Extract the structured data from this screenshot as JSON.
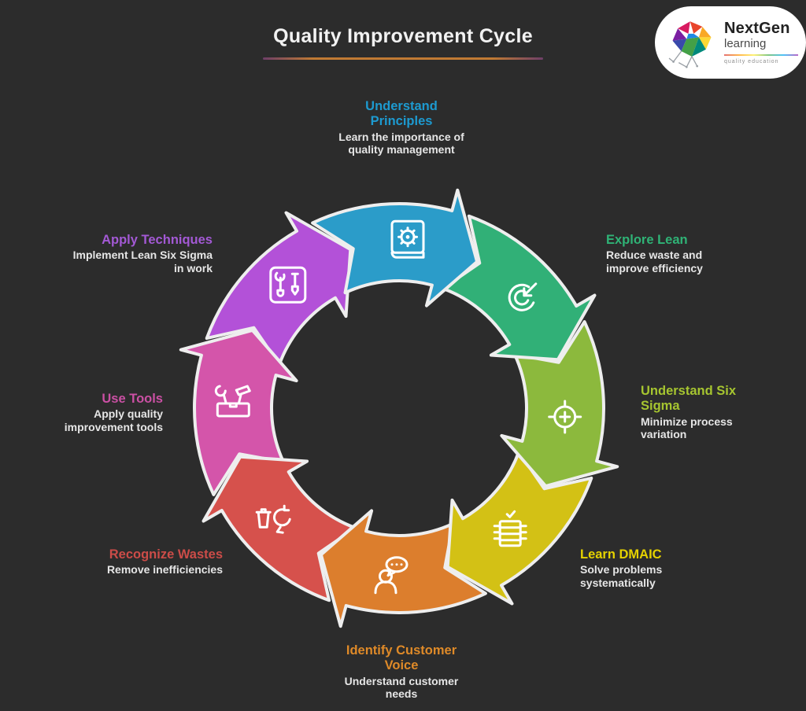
{
  "title": "Quality Improvement Cycle",
  "logo": {
    "name": "NextGen",
    "subname": "learning",
    "tagline": "quality education"
  },
  "steps": [
    {
      "id": "understand-principles",
      "title": "Understand Principles",
      "desc": "Learn the importance of quality management",
      "color": "#2b9cc9",
      "text_color": "#1d9ad0",
      "icon": "book-gear-icon"
    },
    {
      "id": "explore-lean",
      "title": "Explore Lean",
      "desc": "Reduce waste and improve efficiency",
      "color": "#31b077",
      "text_color": "#2fb376",
      "icon": "target-arrow-icon"
    },
    {
      "id": "understand-six-sigma",
      "title": "Understand Six Sigma",
      "desc": "Minimize process variation",
      "color": "#8cb93d",
      "text_color": "#a6c530",
      "icon": "crosshair-icon"
    },
    {
      "id": "learn-dmaic",
      "title": "Learn DMAIC",
      "desc": "Solve problems systematically",
      "color": "#d3c115",
      "text_color": "#e5d200",
      "icon": "checklist-icon"
    },
    {
      "id": "identify-customer-voice",
      "title": "Identify Customer Voice",
      "desc": "Understand customer needs",
      "color": "#dc7e2d",
      "text_color": "#df8a28",
      "icon": "customer-voice-icon"
    },
    {
      "id": "recognize-wastes",
      "title": "Recognize Wastes",
      "desc": "Remove inefficiencies",
      "color": "#d6514c",
      "text_color": "#cc4c48",
      "icon": "waste-icon"
    },
    {
      "id": "use-tools",
      "title": "Use Tools",
      "desc": "Apply quality improvement tools",
      "color": "#d455aa",
      "text_color": "#cb50a4",
      "icon": "toolbox-icon"
    },
    {
      "id": "apply-techniques",
      "title": "Apply Techniques",
      "desc": "Implement Lean Six Sigma in work",
      "color": "#b351d8",
      "text_color": "#a359d5",
      "icon": "wrench-screwdriver-icon"
    }
  ],
  "colors": {
    "background": "#2c2c2c",
    "ring_outline": "#eeeeee",
    "title_text": "#f2f2f2",
    "desc_text": "#e6e6e6",
    "underline": "#c07a33"
  }
}
